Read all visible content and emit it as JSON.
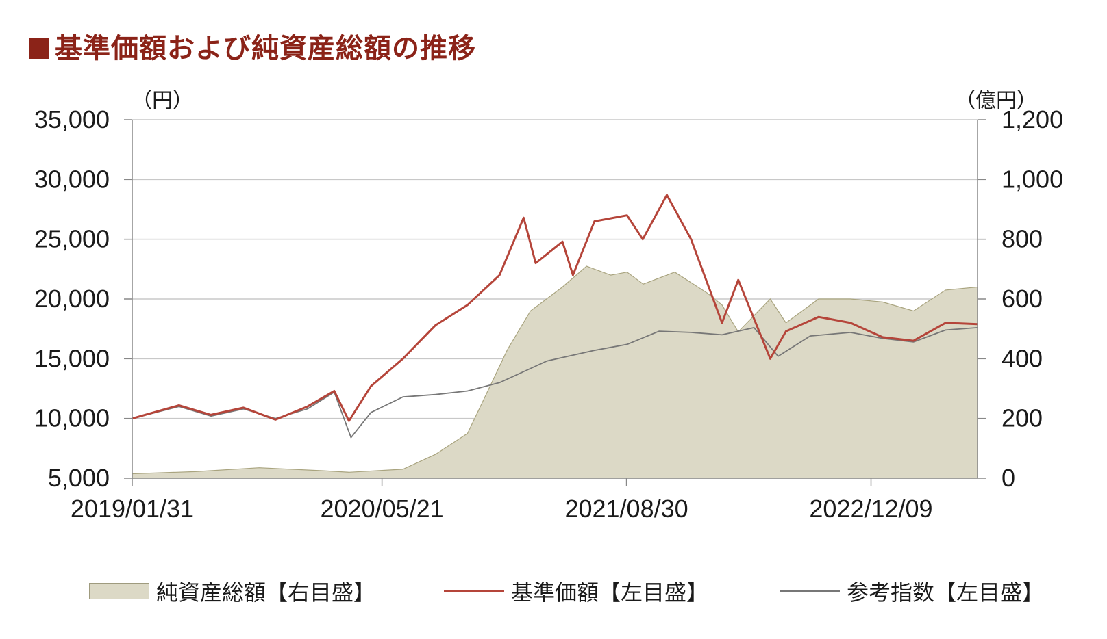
{
  "title": "基準価額および純資産総額の推移",
  "chart_data": {
    "type": "line",
    "units": {
      "left": "（円）",
      "right": "（億円）"
    },
    "x_ticks": [
      "2019/01/31",
      "2020/05/21",
      "2021/08/30",
      "2022/12/09"
    ],
    "x_range": [
      "2019/01/31",
      "2023/06/30"
    ],
    "y_left_range": [
      5000,
      35000
    ],
    "y_left_ticks": [
      "5,000",
      "10,000",
      "15,000",
      "20,000",
      "25,000",
      "30,000",
      "35,000"
    ],
    "y_right_range": [
      0,
      1200
    ],
    "y_right_ticks": [
      "0",
      "200",
      "400",
      "600",
      "800",
      "1,000",
      "1,200"
    ],
    "grid": true,
    "legend_position": "bottom",
    "colors": {
      "area": "#dcd9c6",
      "area_line": "#a9a47f",
      "nav": "#b5453a",
      "index": "#777777"
    },
    "series": [
      {
        "name": "純資産総額【右目盛】",
        "axis": "right",
        "style": "area",
        "x": [
          "2019/01/31",
          "2019/05/31",
          "2019/09/30",
          "2020/01/31",
          "2020/03/19",
          "2020/06/30",
          "2020/08/31",
          "2020/10/31",
          "2020/11/30",
          "2021/01/15",
          "2021/02/28",
          "2021/04/30",
          "2021/06/15",
          "2021/07/31",
          "2021/08/31",
          "2021/10/01",
          "2021/11/30",
          "2022/01/31",
          "2022/02/28",
          "2022/03/31",
          "2022/05/31",
          "2022/06/30",
          "2022/08/31",
          "2022/10/31",
          "2022/12/31",
          "2023/02/28",
          "2023/04/30",
          "2023/06/30"
        ],
        "values": [
          15,
          22,
          35,
          25,
          20,
          30,
          80,
          150,
          260,
          430,
          560,
          640,
          710,
          680,
          690,
          650,
          690,
          620,
          580,
          490,
          600,
          520,
          600,
          600,
          590,
          560,
          630,
          640
        ]
      },
      {
        "name": "基準価額【左目盛】",
        "axis": "left",
        "style": "line",
        "x": [
          "2019/01/31",
          "2019/04/30",
          "2019/06/30",
          "2019/08/31",
          "2019/10/31",
          "2019/12/31",
          "2020/02/20",
          "2020/03/19",
          "2020/04/30",
          "2020/06/30",
          "2020/08/31",
          "2020/10/31",
          "2020/12/31",
          "2021/02/15",
          "2021/03/10",
          "2021/04/30",
          "2021/05/20",
          "2021/06/30",
          "2021/08/31",
          "2021/09/30",
          "2021/11/15",
          "2021/12/31",
          "2022/02/28",
          "2022/03/31",
          "2022/05/31",
          "2022/06/30",
          "2022/08/31",
          "2022/10/31",
          "2022/12/31",
          "2023/02/28",
          "2023/04/30",
          "2023/06/30"
        ],
        "values": [
          10000,
          11100,
          10300,
          10900,
          9900,
          11000,
          12300,
          9800,
          12700,
          15000,
          17800,
          19500,
          22000,
          26800,
          23000,
          24800,
          22000,
          26500,
          27000,
          25000,
          28700,
          25000,
          18000,
          21600,
          15000,
          17300,
          18500,
          18000,
          16800,
          16500,
          18000,
          17900
        ]
      },
      {
        "name": "参考指数【左目盛】",
        "axis": "left",
        "style": "line",
        "x": [
          "2019/01/31",
          "2019/04/30",
          "2019/06/30",
          "2019/08/31",
          "2019/10/31",
          "2019/12/31",
          "2020/02/20",
          "2020/03/23",
          "2020/04/30",
          "2020/06/30",
          "2020/08/31",
          "2020/10/31",
          "2020/12/31",
          "2021/03/31",
          "2021/06/30",
          "2021/08/31",
          "2021/10/31",
          "2021/12/31",
          "2022/02/28",
          "2022/04/30",
          "2022/06/15",
          "2022/08/15",
          "2022/10/31",
          "2022/12/31",
          "2023/02/28",
          "2023/04/30",
          "2023/06/30"
        ],
        "values": [
          10000,
          11000,
          10200,
          10800,
          10000,
          10800,
          12200,
          8400,
          10500,
          11800,
          12000,
          12300,
          13000,
          14800,
          15700,
          16200,
          17300,
          17200,
          17000,
          17600,
          15200,
          16900,
          17200,
          16700,
          16400,
          17400,
          17600
        ]
      }
    ]
  }
}
